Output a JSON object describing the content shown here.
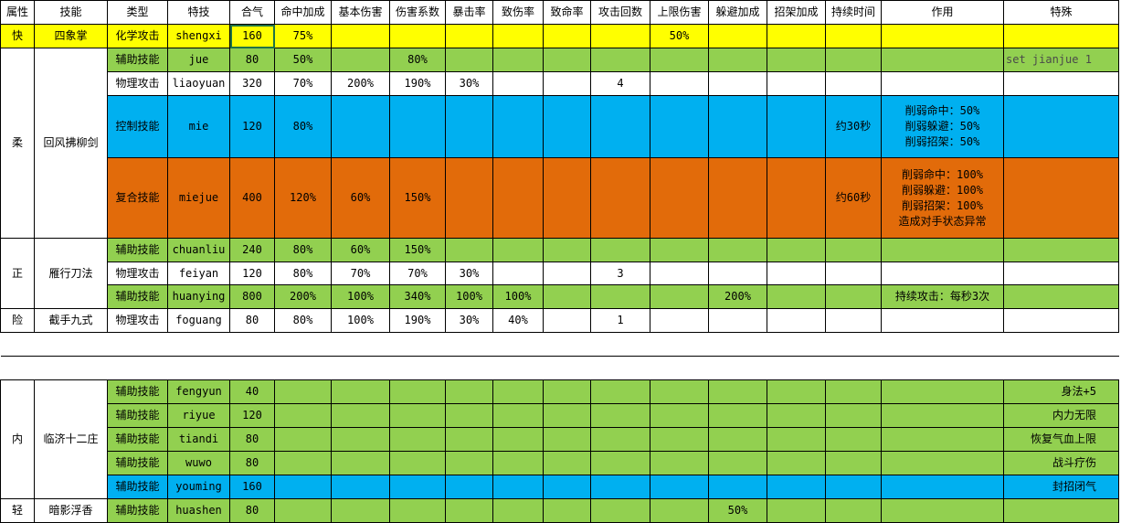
{
  "colors": {
    "yellow": "#ffff00",
    "green": "#92d050",
    "blue": "#00b0f0",
    "orange": "#e26b0a",
    "white": "#ffffff",
    "special_text_gray": "#4a4a4a"
  },
  "headers": [
    "属性",
    "技能",
    "类型",
    "特技",
    "合气",
    "命中加成",
    "基本伤害",
    "伤害系数",
    "暴击率",
    "致伤率",
    "致命率",
    "攻击回数",
    "上限伤害",
    "躲避加成",
    "招架加成",
    "持续时间",
    "作用",
    "特殊"
  ],
  "groups": [
    {
      "attr": "快",
      "skill": "四象掌",
      "rows": [
        {
          "color": "yellow",
          "cells": [
            "化学攻击",
            "shengxi",
            "160",
            "75%",
            "",
            "",
            "",
            "",
            "",
            "",
            "50%",
            "",
            "",
            "",
            "",
            ""
          ]
        }
      ]
    },
    {
      "attr": "柔",
      "skill": "回风拂柳剑",
      "rows": [
        {
          "color": "green",
          "cells": [
            "辅助技能",
            "jue",
            "80",
            "50%",
            "",
            "80%",
            "",
            "",
            "",
            "",
            "",
            "",
            "",
            "",
            "",
            "set jianjue 1"
          ]
        },
        {
          "color": "white",
          "cells": [
            "物理攻击",
            "liaoyuan",
            "320",
            "70%",
            "200%",
            "190%",
            "30%",
            "",
            "",
            "4",
            "",
            "",
            "",
            "",
            "",
            ""
          ]
        },
        {
          "color": "blue",
          "cells": [
            "控制技能",
            "mie",
            "120",
            "80%",
            "",
            "",
            "",
            "",
            "",
            "",
            "",
            "",
            "",
            "约30秒",
            "削弱命中：50%\n削弱躲避：50%\n削弱招架：50%",
            ""
          ]
        },
        {
          "color": "orange",
          "cells": [
            "复合技能",
            "miejue",
            "400",
            "120%",
            "60%",
            "150%",
            "",
            "",
            "",
            "",
            "",
            "",
            "",
            "约60秒",
            "削弱命中：100%\n削弱躲避：100%\n削弱招架：100%\n造成对手状态异常",
            ""
          ]
        }
      ]
    },
    {
      "attr": "正",
      "skill": "雁行刀法",
      "rows": [
        {
          "color": "green",
          "cells": [
            "辅助技能",
            "chuanliu",
            "240",
            "80%",
            "60%",
            "150%",
            "",
            "",
            "",
            "",
            "",
            "",
            "",
            "",
            "",
            ""
          ]
        },
        {
          "color": "white",
          "cells": [
            "物理攻击",
            "feiyan",
            "120",
            "80%",
            "70%",
            "70%",
            "30%",
            "",
            "",
            "3",
            "",
            "",
            "",
            "",
            "",
            ""
          ]
        },
        {
          "color": "green",
          "cells": [
            "辅助技能",
            "huanying",
            "800",
            "200%",
            "100%",
            "340%",
            "100%",
            "100%",
            "",
            "",
            "",
            "200%",
            "",
            "",
            "持续攻击：每秒3次",
            ""
          ]
        }
      ]
    },
    {
      "attr": "险",
      "skill": "截手九式",
      "rows": [
        {
          "color": "white",
          "cells": [
            "物理攻击",
            "foguang",
            "80",
            "80%",
            "100%",
            "190%",
            "30%",
            "40%",
            "",
            "1",
            "",
            "",
            "",
            "",
            "",
            ""
          ]
        }
      ]
    },
    {
      "attr": "内",
      "skill": "临济十二庄",
      "rows": [
        {
          "color": "green",
          "cells": [
            "辅助技能",
            "fengyun",
            "40",
            "",
            "",
            "",
            "",
            "",
            "",
            "",
            "",
            "",
            "",
            "",
            "",
            "身法+5"
          ]
        },
        {
          "color": "green",
          "cells": [
            "辅助技能",
            "riyue",
            "120",
            "",
            "",
            "",
            "",
            "",
            "",
            "",
            "",
            "",
            "",
            "",
            "",
            "内力无限"
          ]
        },
        {
          "color": "green",
          "cells": [
            "辅助技能",
            "tiandi",
            "80",
            "",
            "",
            "",
            "",
            "",
            "",
            "",
            "",
            "",
            "",
            "",
            "",
            "恢复气血上限"
          ]
        },
        {
          "color": "green",
          "cells": [
            "辅助技能",
            "wuwo",
            "80",
            "",
            "",
            "",
            "",
            "",
            "",
            "",
            "",
            "",
            "",
            "",
            "",
            "战斗疗伤"
          ]
        },
        {
          "color": "blue",
          "cells": [
            "辅助技能",
            "youming",
            "160",
            "",
            "",
            "",
            "",
            "",
            "",
            "",
            "",
            "",
            "",
            "",
            "",
            "封招闭气"
          ]
        }
      ]
    },
    {
      "attr": "轻",
      "skill": "暗影浮香",
      "rows": [
        {
          "color": "green",
          "cells": [
            "辅助技能",
            "huashen",
            "80",
            "",
            "",
            "",
            "",
            "",
            "",
            "",
            "",
            "50%",
            "",
            "",
            "",
            ""
          ]
        }
      ]
    }
  ]
}
